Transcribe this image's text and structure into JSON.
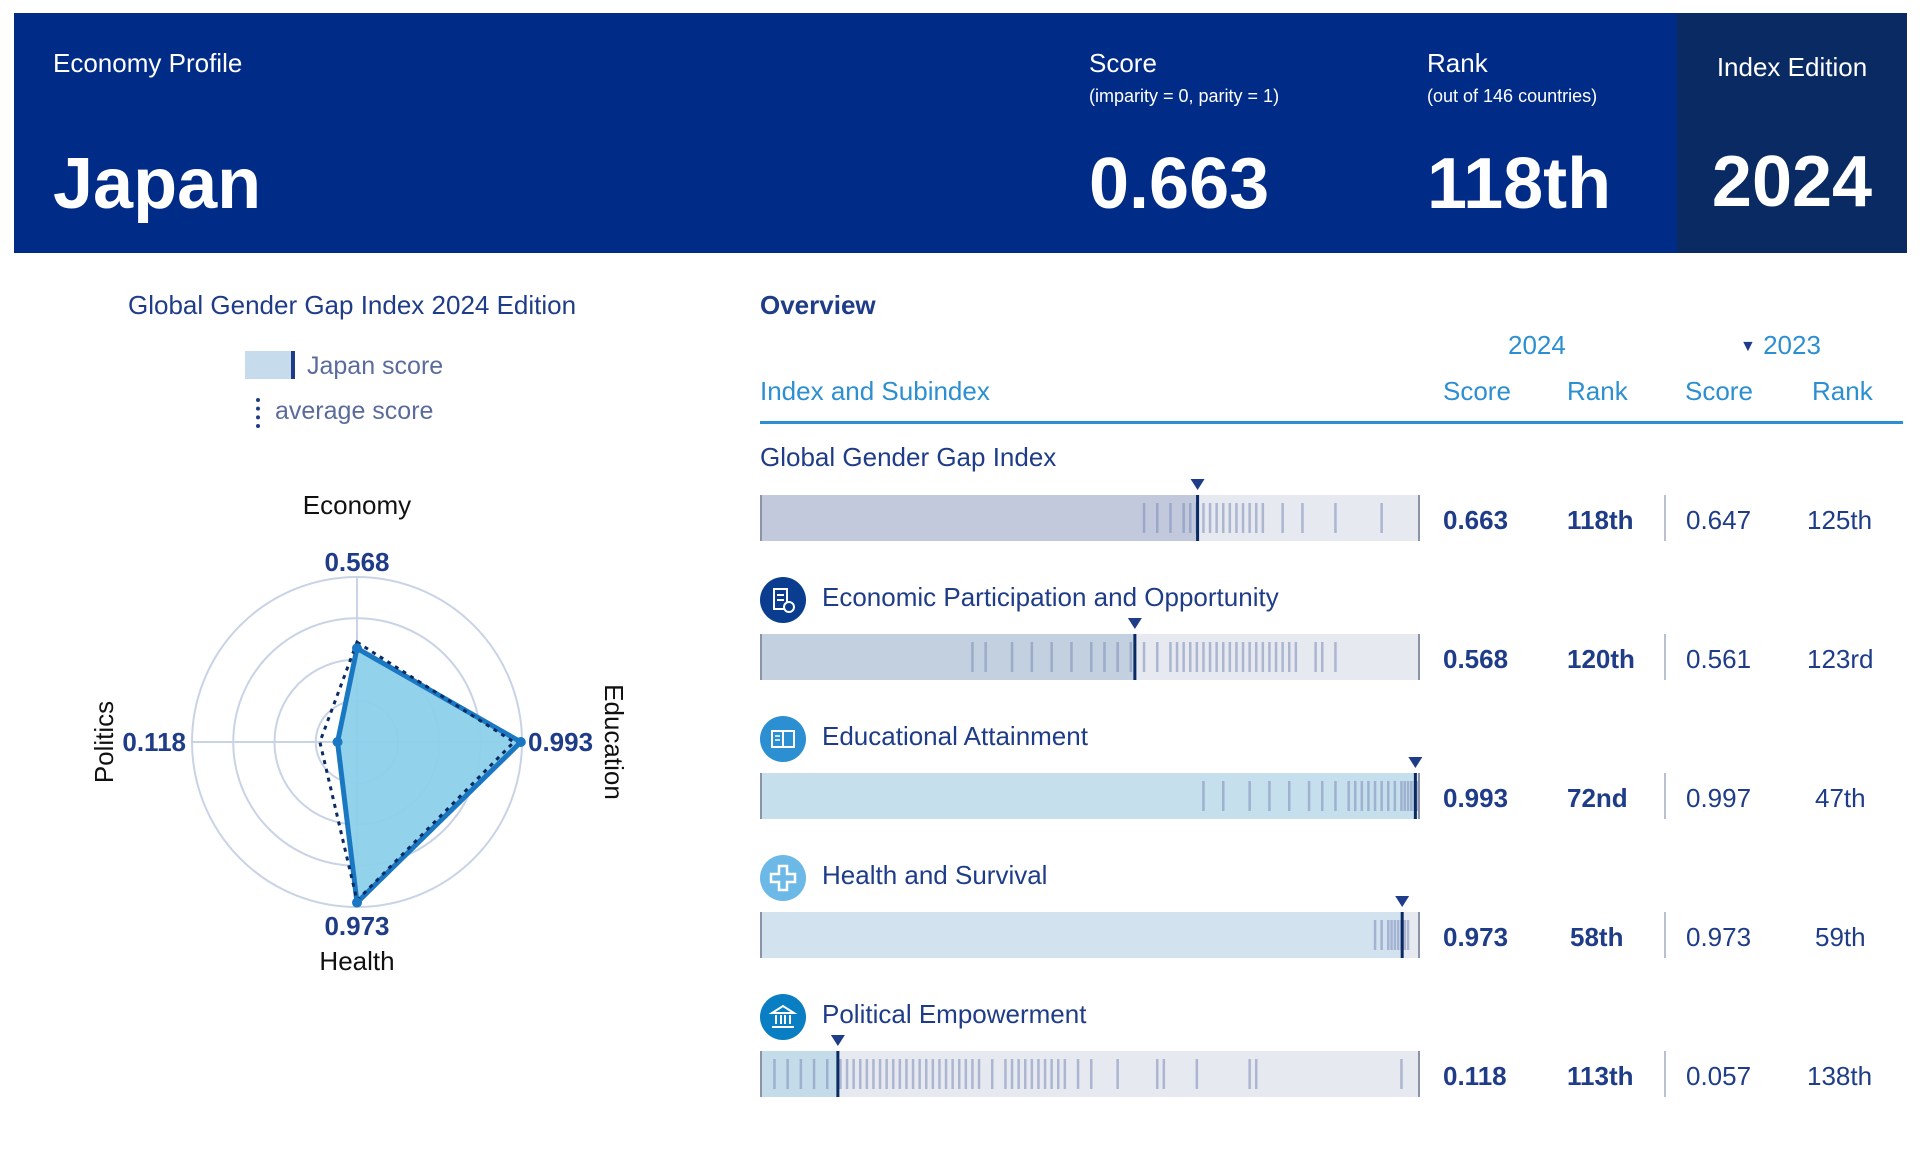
{
  "header": {
    "profile_label": "Economy Profile",
    "country": "Japan",
    "score_label": "Score",
    "score_note": "(imparity = 0, parity = 1)",
    "score_value": "0.663",
    "rank_label": "Rank",
    "rank_note": "(out of 146 countries)",
    "rank_value": "118th",
    "edition_label": "Index Edition",
    "edition_value": "2024"
  },
  "left": {
    "title": "Global Gender Gap Index 2024 Edition",
    "legend_japan": "Japan score",
    "legend_average": "average score"
  },
  "overview": {
    "title": "Overview",
    "year_2024": "2024",
    "year_2023": "2023",
    "col_index": "Index and Subindex",
    "col_score": "Score",
    "col_rank": "Rank"
  },
  "chart_data": [
    {
      "type": "radar",
      "axes": [
        "Economy",
        "Education",
        "Health",
        "Politics"
      ],
      "series": [
        {
          "name": "Japan score",
          "values": [
            0.568,
            0.993,
            0.973,
            0.118
          ]
        },
        {
          "name": "average score",
          "values": [
            0.605,
            0.951,
            0.96,
            0.225
          ]
        }
      ],
      "value_labels": [
        "0.568",
        "0.993",
        "0.973",
        "0.118"
      ],
      "range": [
        0,
        1
      ]
    },
    {
      "type": "bar",
      "categories": [
        "Global Gender Gap Index",
        "Economic Participation and Opportunity",
        "Educational Attainment",
        "Health and Survival",
        "Political Empowerment"
      ],
      "series": [
        {
          "name": "2024 Score",
          "values": [
            0.663,
            0.568,
            0.993,
            0.973,
            0.118
          ]
        },
        {
          "name": "2024 Rank",
          "values": [
            "118th",
            "120th",
            "72nd",
            "58th",
            "113th"
          ]
        },
        {
          "name": "2023 Score",
          "values": [
            0.647,
            0.561,
            0.997,
            0.973,
            0.057
          ]
        },
        {
          "name": "2023 Rank",
          "values": [
            "125th",
            "123rd",
            "47th",
            "59th",
            "138th"
          ]
        }
      ],
      "score_labels_2024": [
        "0.663",
        "0.568",
        "0.993",
        "0.973",
        "0.118"
      ],
      "score_labels_2023": [
        "0.647",
        "0.561",
        "0.997",
        "0.973",
        "0.057"
      ],
      "range": [
        0,
        1
      ]
    }
  ],
  "rows": [
    {
      "title": "Global Gender Gap Index",
      "icon": "",
      "fill": "#c2c9dd",
      "dist": [
        0.58,
        0.6,
        0.62,
        0.64,
        0.65,
        0.66,
        0.67,
        0.68,
        0.69,
        0.7,
        0.71,
        0.72,
        0.73,
        0.74,
        0.75,
        0.76,
        0.79,
        0.82,
        0.87,
        0.94
      ]
    },
    {
      "title": "Economic Participation and Opportunity",
      "icon": "briefcase-icon",
      "icon_color": "#0a3d8f",
      "fill": "#c2d0e0",
      "dist": [
        0.32,
        0.34,
        0.38,
        0.41,
        0.44,
        0.47,
        0.5,
        0.52,
        0.54,
        0.56,
        0.58,
        0.6,
        0.62,
        0.63,
        0.64,
        0.65,
        0.66,
        0.67,
        0.68,
        0.69,
        0.7,
        0.71,
        0.72,
        0.73,
        0.74,
        0.75,
        0.76,
        0.77,
        0.78,
        0.79,
        0.8,
        0.81,
        0.84,
        0.85,
        0.87
      ]
    },
    {
      "title": "Educational Attainment",
      "icon": "book-icon",
      "icon_color": "#2c8fd1",
      "fill": "#c6dfec",
      "dist": [
        0.67,
        0.7,
        0.74,
        0.77,
        0.8,
        0.83,
        0.85,
        0.87,
        0.89,
        0.9,
        0.91,
        0.92,
        0.93,
        0.94,
        0.95,
        0.96,
        0.97,
        0.975,
        0.98,
        0.985,
        0.99,
        0.995
      ]
    },
    {
      "title": "Health and Survival",
      "icon": "cross-icon",
      "icon_color": "#6cb8e6",
      "fill": "#d2e2ef",
      "dist": [
        0.93,
        0.94,
        0.95,
        0.955,
        0.96,
        0.965,
        0.97,
        0.975,
        0.98
      ]
    },
    {
      "title": "Political Empowerment",
      "icon": "building-icon",
      "icon_color": "#0a7ec2",
      "fill": "#c4dbe9",
      "dist": [
        0.02,
        0.04,
        0.06,
        0.08,
        0.1,
        0.12,
        0.13,
        0.14,
        0.15,
        0.16,
        0.17,
        0.18,
        0.19,
        0.2,
        0.21,
        0.22,
        0.23,
        0.24,
        0.25,
        0.26,
        0.27,
        0.28,
        0.29,
        0.3,
        0.31,
        0.32,
        0.33,
        0.35,
        0.37,
        0.38,
        0.39,
        0.4,
        0.41,
        0.42,
        0.43,
        0.44,
        0.45,
        0.46,
        0.48,
        0.5,
        0.54,
        0.6,
        0.61,
        0.66,
        0.74,
        0.75,
        0.97
      ]
    }
  ],
  "colors": {
    "navy": "#002b87",
    "dark_navy": "#0a2a63",
    "accent_blue": "#2c8fd1",
    "radar_fill": "#8dd0ea",
    "radar_stroke": "#1a78c2",
    "text_dark": "#1f3c88"
  }
}
